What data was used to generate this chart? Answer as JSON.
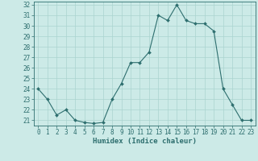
{
  "x": [
    0,
    1,
    2,
    3,
    4,
    5,
    6,
    7,
    8,
    9,
    10,
    11,
    12,
    13,
    14,
    15,
    16,
    17,
    18,
    19,
    20,
    21,
    22,
    23
  ],
  "y": [
    24,
    23,
    21.5,
    22,
    21,
    20.8,
    20.7,
    20.8,
    23,
    24.5,
    26.5,
    26.5,
    27.5,
    31,
    30.5,
    32,
    30.5,
    30.2,
    30.2,
    29.5,
    24,
    22.5,
    21,
    21
  ],
  "line_color": "#2d6e6e",
  "marker": "D",
  "marker_size": 2,
  "bg_color": "#cceae7",
  "grid_color": "#aad4d0",
  "xlabel": "Humidex (Indice chaleur)",
  "ylabel": "",
  "ylim": [
    20.5,
    32.3
  ],
  "xlim": [
    -0.5,
    23.5
  ],
  "yticks": [
    21,
    22,
    23,
    24,
    25,
    26,
    27,
    28,
    29,
    30,
    31,
    32
  ],
  "xticks": [
    0,
    1,
    2,
    3,
    4,
    5,
    6,
    7,
    8,
    9,
    10,
    11,
    12,
    13,
    14,
    15,
    16,
    17,
    18,
    19,
    20,
    21,
    22,
    23
  ],
  "tick_label_fontsize": 5.5,
  "xlabel_fontsize": 6.5,
  "spine_color": "#2d6e6e",
  "line_width": 0.8
}
